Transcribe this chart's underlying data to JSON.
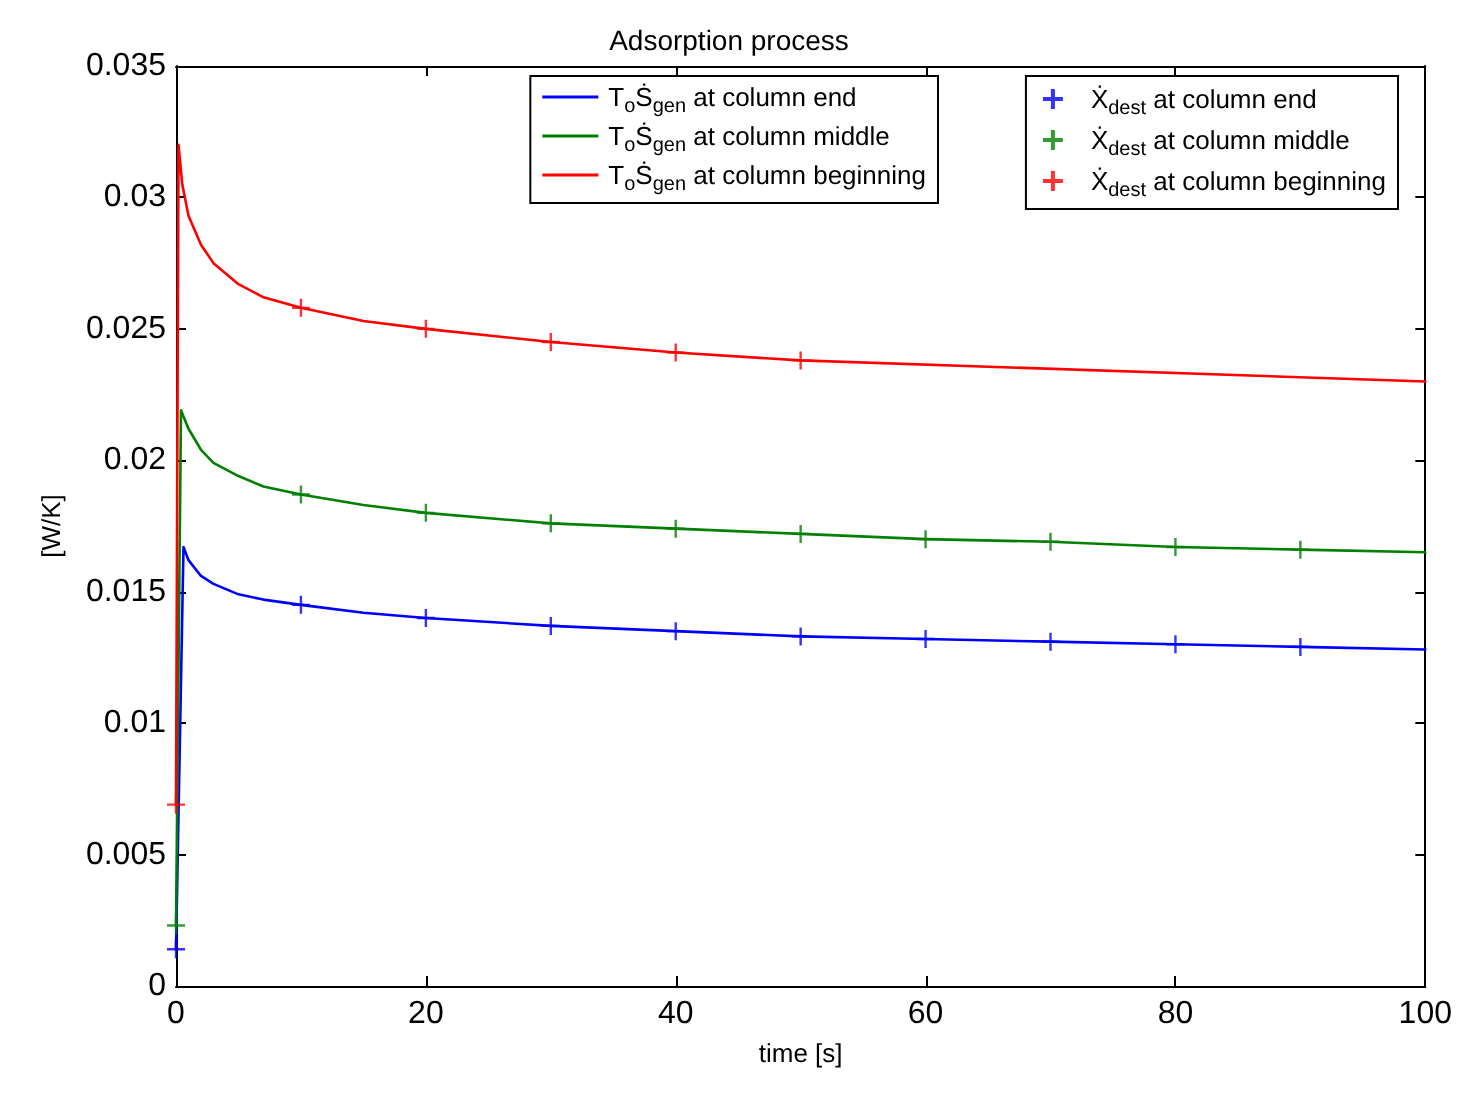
{
  "chart_data": {
    "type": "line",
    "title": "Adsorption process",
    "xlabel": "time [s]",
    "ylabel": "[W/K]",
    "xlim": [
      0,
      100
    ],
    "xticks": [
      0,
      20,
      40,
      60,
      80,
      100
    ],
    "ylim": [
      0,
      0.035
    ],
    "yticks": [
      0,
      0.005,
      0.01,
      0.015,
      0.02,
      0.025,
      0.03,
      0.035
    ],
    "grid": false,
    "legend": "top right",
    "line_style": "solid",
    "series": [
      {
        "name": "T$_{o}$Ṡ$_{gen}$ at column end",
        "marker": "none",
        "color": "#0000ff",
        "x": [
          0,
          0.6,
          1,
          2,
          3,
          5,
          7,
          10,
          15,
          20,
          30,
          40,
          50,
          60,
          70,
          80,
          90,
          100
        ],
        "values": [
          0.0014,
          0.0167,
          0.0162,
          0.0156,
          0.0153,
          0.0149,
          0.0147,
          0.0145,
          0.0142,
          0.014,
          0.0137,
          0.0135,
          0.0133,
          0.0132,
          0.0131,
          0.013,
          0.0129,
          0.0128
        ]
      },
      {
        "name": "T$_{o}$Ṡ$_{gen}$ at column middle",
        "marker": "none",
        "color": "#008000",
        "x": [
          0,
          0.4,
          1,
          2,
          3,
          5,
          7,
          10,
          15,
          20,
          30,
          40,
          50,
          60,
          70,
          80,
          90,
          100
        ],
        "values": [
          0.0023,
          0.0219,
          0.0212,
          0.0204,
          0.0199,
          0.0194,
          0.019,
          0.0187,
          0.0183,
          0.018,
          0.0176,
          0.0174,
          0.0172,
          0.017,
          0.0169,
          0.0167,
          0.0166,
          0.0165
        ]
      },
      {
        "name": "T$_{o}$Ṡ$_{gen}$ at column beginning",
        "marker": "none",
        "color": "#ff0000",
        "x": [
          0,
          0.2,
          0.5,
          1,
          2,
          3,
          5,
          7,
          10,
          15,
          20,
          30,
          40,
          50,
          100
        ],
        "values": [
          0.0069,
          0.032,
          0.0305,
          0.0293,
          0.0282,
          0.0275,
          0.0267,
          0.0262,
          0.0258,
          0.0253,
          0.025,
          0.0245,
          0.0241,
          0.0238,
          0.023
        ]
      },
      {
        "name": "Ẋ$_{dest}$ at column end",
        "type": "scatter",
        "marker": "cross",
        "color": "#0000ff",
        "x": [
          0,
          10,
          20,
          30,
          40,
          50,
          60,
          70,
          80,
          90
        ],
        "values": [
          0.0014,
          0.0145,
          0.014,
          0.0137,
          0.0135,
          0.0133,
          0.0132,
          0.0131,
          0.013,
          0.0129
        ]
      },
      {
        "name": "Ẋ$_{dest}$ at column middle",
        "type": "scatter",
        "marker": "cross",
        "color": "#008000",
        "x": [
          0,
          10,
          20,
          30,
          40,
          50,
          60,
          70,
          80,
          90
        ],
        "values": [
          0.0023,
          0.0187,
          0.018,
          0.0176,
          0.0174,
          0.0172,
          0.017,
          0.0169,
          0.0167,
          0.0166
        ]
      },
      {
        "name": "Ẋ$_{dest}$ at column beginning",
        "type": "scatter",
        "marker": "cross",
        "color": "#ff0000",
        "x": [
          0,
          10,
          20,
          30,
          40,
          50
        ],
        "values": [
          0.0069,
          0.0258,
          0.025,
          0.0245,
          0.0241,
          0.0238
        ]
      }
    ]
  }
}
